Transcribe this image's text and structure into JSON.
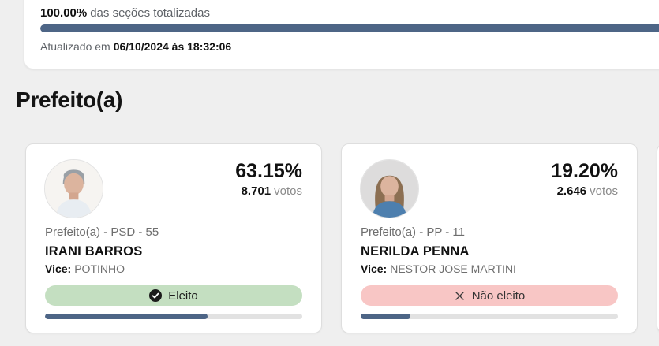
{
  "colors": {
    "accent_blue": "#4d6586",
    "elected_badge_bg": "#c4dfc1",
    "not_elected_badge_bg": "#f8c6c5",
    "progress_track": "#e2e2e2",
    "page_background": "#efefef"
  },
  "summary": {
    "percent": "100.00%",
    "label": "das seções totalizadas",
    "progress_percent": 100,
    "updated_prefix": "Atualizado em",
    "updated_value": "06/10/2024 às 18:32:06"
  },
  "section_title": "Prefeito(a)",
  "candidates": [
    {
      "percent": "63.15%",
      "votes": "8.701",
      "votes_label": "votos",
      "office_party": "Prefeito(a) - PSD - 55",
      "name": "IRANI BARROS",
      "vice_label": "Vice:",
      "vice_name": "POTINHO",
      "status": "Eleito",
      "status_type": "elected",
      "bar_percent": 63.15
    },
    {
      "percent": "19.20%",
      "votes": "2.646",
      "votes_label": "votos",
      "office_party": "Prefeito(a) - PP - 11",
      "name": "NERILDA PENNA",
      "vice_label": "Vice:",
      "vice_name": "NESTOR JOSE MARTINI",
      "status": "Não eleito",
      "status_type": "not-elected",
      "bar_percent": 19.2
    }
  ]
}
